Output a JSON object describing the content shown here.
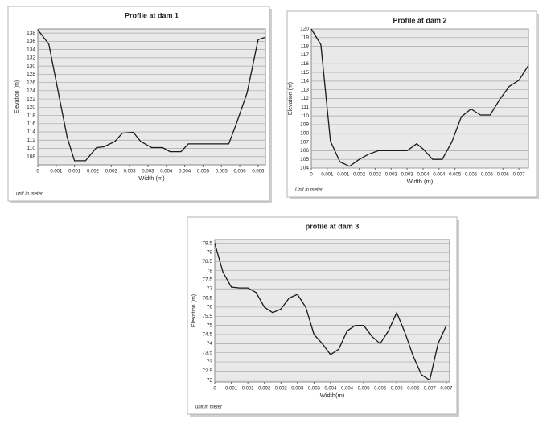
{
  "chart_data": [
    {
      "type": "line",
      "title": "Profile at dam 1",
      "x_label": "Width (m)",
      "y_label": "Elevation (m)",
      "annotation": "unit in meter",
      "color": "#1a1a1a",
      "grid": true,
      "x": [
        0,
        0.0003,
        0.0008,
        0.001,
        0.0013,
        0.0016,
        0.0018,
        0.0021,
        0.0023,
        0.0026,
        0.0028,
        0.0031,
        0.0034,
        0.0036,
        0.0039,
        0.0041,
        0.0044,
        0.0047,
        0.0052,
        0.0054,
        0.0057,
        0.006,
        0.0062
      ],
      "values": [
        138.8,
        135.3,
        112.7,
        107,
        107,
        110.2,
        110.4,
        111.7,
        113.7,
        113.9,
        111.7,
        110.2,
        110.2,
        109.2,
        109.2,
        111.1,
        111.1,
        111.1,
        111.1,
        115.8,
        123.5,
        136.4,
        137
      ],
      "xlim": [
        0,
        0.0062
      ],
      "ylim": [
        106,
        139
      ],
      "xticks": [
        0,
        {
          "value": 0.0005,
          "label": "0.001"
        },
        0.001,
        {
          "value": 0.0015,
          "label": "0.002"
        },
        0.002,
        {
          "value": 0.0025,
          "label": "0.003"
        },
        0.003,
        {
          "value": 0.0035,
          "label": "0.004"
        },
        0.004,
        {
          "value": 0.0045,
          "label": "0.005"
        },
        0.005,
        {
          "value": 0.0055,
          "label": "0.006"
        },
        0.006
      ],
      "yticks": [
        108,
        110,
        112,
        114,
        116,
        118,
        120,
        122,
        124,
        126,
        128,
        130,
        132,
        134,
        136,
        138
      ]
    },
    {
      "type": "line",
      "title": "Profile at dam 2",
      "x_label": "Width (m)",
      "y_label": "Elevation (m)",
      "annotation": "Unit in meter",
      "color": "#1a1a1a",
      "grid": true,
      "x": [
        0,
        0.0003,
        0.0006,
        0.0009,
        0.0012,
        0.0015,
        0.0018,
        0.0021,
        0.0024,
        0.0027,
        0.003,
        0.0033,
        0.0035,
        0.0038,
        0.0041,
        0.0044,
        0.0047,
        0.005,
        0.0053,
        0.0056,
        0.0059,
        0.0062,
        0.0065,
        0.0068
      ],
      "values": [
        120,
        118.2,
        107.1,
        104.7,
        104.2,
        105,
        105.6,
        106,
        106,
        106,
        106,
        106.8,
        106.2,
        105,
        105,
        107,
        109.9,
        110.8,
        110.1,
        110.1,
        111.9,
        113.4,
        114.1,
        115.8
      ],
      "xlim": [
        0,
        0.0068
      ],
      "ylim": [
        104,
        120
      ],
      "xticks": [
        0,
        {
          "value": 0.0005,
          "label": "0.001"
        },
        0.001,
        {
          "value": 0.0015,
          "label": "0.002"
        },
        0.002,
        {
          "value": 0.0025,
          "label": "0.003"
        },
        0.003,
        {
          "value": 0.0035,
          "label": "0.004"
        },
        0.004,
        {
          "value": 0.0045,
          "label": "0.005"
        },
        0.005,
        {
          "value": 0.0055,
          "label": "0.006"
        },
        0.006,
        {
          "value": 0.0065,
          "label": "0.007"
        }
      ],
      "yticks": [
        104,
        105,
        106,
        107,
        108,
        109,
        110,
        111,
        112,
        113,
        114,
        115,
        116,
        117,
        118,
        119,
        120
      ]
    },
    {
      "type": "line",
      "title": "profile at dam 3",
      "x_label": "Width(m)",
      "y_label": "Elevation (m)",
      "annotation": "unit in meter",
      "color": "#1a1a1a",
      "grid": true,
      "x": [
        0,
        0.00025,
        0.0005,
        0.00075,
        0.001,
        0.00125,
        0.0015,
        0.00175,
        0.002,
        0.00225,
        0.0025,
        0.00275,
        0.003,
        0.00325,
        0.0035,
        0.00375,
        0.004,
        0.00425,
        0.0045,
        0.00475,
        0.005,
        0.00525,
        0.0055,
        0.00575,
        0.006,
        0.00625,
        0.0065,
        0.00675,
        0.007
      ],
      "values": [
        79.5,
        77.9,
        77.1,
        77.05,
        77.05,
        76.8,
        76,
        75.7,
        75.9,
        76.5,
        76.7,
        76,
        74.5,
        74,
        73.4,
        73.7,
        74.7,
        75,
        75,
        74.4,
        74,
        74.7,
        75.7,
        74.6,
        73.3,
        72.3,
        72,
        74,
        75
      ],
      "xlim": [
        0,
        0.0071
      ],
      "ylim": [
        71.9,
        79.7
      ],
      "xticks": [
        0,
        {
          "value": 0.0005,
          "label": "0.001"
        },
        0.001,
        {
          "value": 0.0015,
          "label": "0.002"
        },
        0.002,
        {
          "value": 0.0025,
          "label": "0.003"
        },
        0.003,
        {
          "value": 0.0035,
          "label": "0.004"
        },
        0.004,
        {
          "value": 0.0045,
          "label": "0.005"
        },
        0.005,
        {
          "value": 0.0055,
          "label": "0.006"
        },
        0.006,
        {
          "value": 0.0065,
          "label": "0.007"
        },
        0.007
      ],
      "yticks": [
        72,
        72.5,
        73,
        73.5,
        74,
        74.5,
        75,
        75.5,
        76,
        76.5,
        77,
        77.5,
        78,
        78.5,
        79,
        79.5
      ]
    }
  ]
}
